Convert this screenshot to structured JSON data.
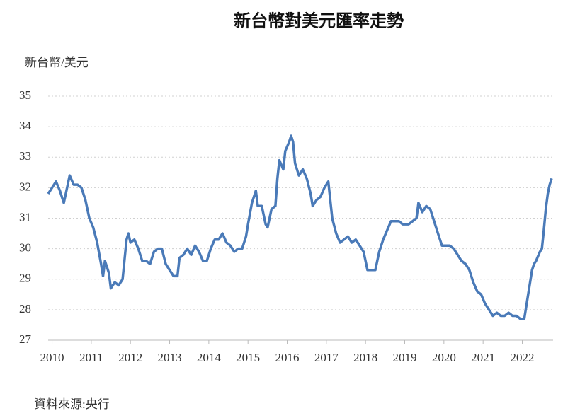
{
  "chart_data": {
    "type": "line",
    "title": "新台幣對美元匯率走勢",
    "y_label": "新台幣/美元",
    "source": "資料來源:央行",
    "x": [
      2009.9,
      2010.0,
      2010.1,
      2010.2,
      2010.3,
      2010.35,
      2010.45,
      2010.55,
      2010.65,
      2010.75,
      2010.85,
      2010.95,
      2011.05,
      2011.15,
      2011.25,
      2011.3,
      2011.35,
      2011.45,
      2011.5,
      2011.6,
      2011.7,
      2011.8,
      2011.9,
      2011.95,
      2012.0,
      2012.1,
      2012.2,
      2012.3,
      2012.4,
      2012.5,
      2012.6,
      2012.7,
      2012.8,
      2012.9,
      2013.0,
      2013.1,
      2013.2,
      2013.25,
      2013.35,
      2013.45,
      2013.55,
      2013.65,
      2013.75,
      2013.85,
      2013.95,
      2014.05,
      2014.15,
      2014.25,
      2014.35,
      2014.45,
      2014.55,
      2014.65,
      2014.75,
      2014.85,
      2014.95,
      2015.0,
      2015.1,
      2015.2,
      2015.25,
      2015.35,
      2015.45,
      2015.5,
      2015.6,
      2015.7,
      2015.75,
      2015.8,
      2015.9,
      2015.95,
      2016.05,
      2016.1,
      2016.15,
      2016.2,
      2016.3,
      2016.4,
      2016.5,
      2016.6,
      2016.65,
      2016.75,
      2016.85,
      2016.95,
      2017.05,
      2017.15,
      2017.25,
      2017.35,
      2017.45,
      2017.55,
      2017.65,
      2017.75,
      2017.85,
      2017.95,
      2018.05,
      2018.15,
      2018.25,
      2018.35,
      2018.45,
      2018.55,
      2018.65,
      2018.75,
      2018.85,
      2018.95,
      2019.1,
      2019.2,
      2019.3,
      2019.35,
      2019.45,
      2019.55,
      2019.65,
      2019.75,
      2019.85,
      2019.95,
      2020.05,
      2020.15,
      2020.25,
      2020.35,
      2020.45,
      2020.55,
      2020.65,
      2020.75,
      2020.85,
      2020.95,
      2021.05,
      2021.15,
      2021.25,
      2021.35,
      2021.45,
      2021.55,
      2021.65,
      2021.75,
      2021.85,
      2021.95,
      2022.05,
      2022.15,
      2022.25,
      2022.3,
      2022.35,
      2022.45,
      2022.5,
      2022.55,
      2022.6,
      2022.65,
      2022.7,
      2022.75
    ],
    "series": [
      {
        "name": "新台幣/美元",
        "color": "#4a7ab8",
        "values": [
          31.8,
          32.0,
          32.2,
          31.9,
          31.5,
          31.8,
          32.4,
          32.1,
          32.1,
          32.0,
          31.6,
          31.0,
          30.7,
          30.2,
          29.5,
          29.1,
          29.6,
          29.2,
          28.7,
          28.9,
          28.8,
          29.0,
          30.3,
          30.5,
          30.2,
          30.3,
          30.0,
          29.6,
          29.6,
          29.5,
          29.9,
          30.0,
          30.0,
          29.5,
          29.3,
          29.1,
          29.1,
          29.7,
          29.8,
          30.0,
          29.8,
          30.1,
          29.9,
          29.6,
          29.6,
          30.0,
          30.3,
          30.3,
          30.5,
          30.2,
          30.1,
          29.9,
          30.0,
          30.0,
          30.4,
          30.8,
          31.5,
          31.9,
          31.4,
          31.4,
          30.8,
          30.7,
          31.3,
          31.4,
          32.3,
          32.9,
          32.6,
          33.2,
          33.5,
          33.7,
          33.5,
          32.8,
          32.4,
          32.6,
          32.3,
          31.8,
          31.4,
          31.6,
          31.7,
          32.0,
          32.2,
          31.0,
          30.5,
          30.2,
          30.3,
          30.4,
          30.2,
          30.3,
          30.1,
          29.9,
          29.3,
          29.3,
          29.3,
          29.9,
          30.3,
          30.6,
          30.9,
          30.9,
          30.9,
          30.8,
          30.8,
          30.9,
          31.0,
          31.5,
          31.2,
          31.4,
          31.3,
          30.9,
          30.5,
          30.1,
          30.1,
          30.1,
          30.0,
          29.8,
          29.6,
          29.5,
          29.3,
          28.9,
          28.6,
          28.5,
          28.2,
          28.0,
          27.8,
          27.9,
          27.8,
          27.8,
          27.9,
          27.8,
          27.8,
          27.7,
          27.7,
          28.5,
          29.3,
          29.5,
          29.6,
          29.9,
          30.0,
          30.6,
          31.3,
          31.8,
          32.1,
          32.3
        ]
      }
    ],
    "xlim": [
      2009.9,
      2022.75
    ],
    "xticks": [
      2010,
      2011,
      2012,
      2013,
      2014,
      2015,
      2016,
      2017,
      2018,
      2019,
      2020,
      2021,
      2022
    ],
    "ylim": [
      27,
      35
    ],
    "yticks": [
      27,
      28,
      29,
      30,
      31,
      32,
      33,
      34,
      35
    ],
    "grid": true
  }
}
